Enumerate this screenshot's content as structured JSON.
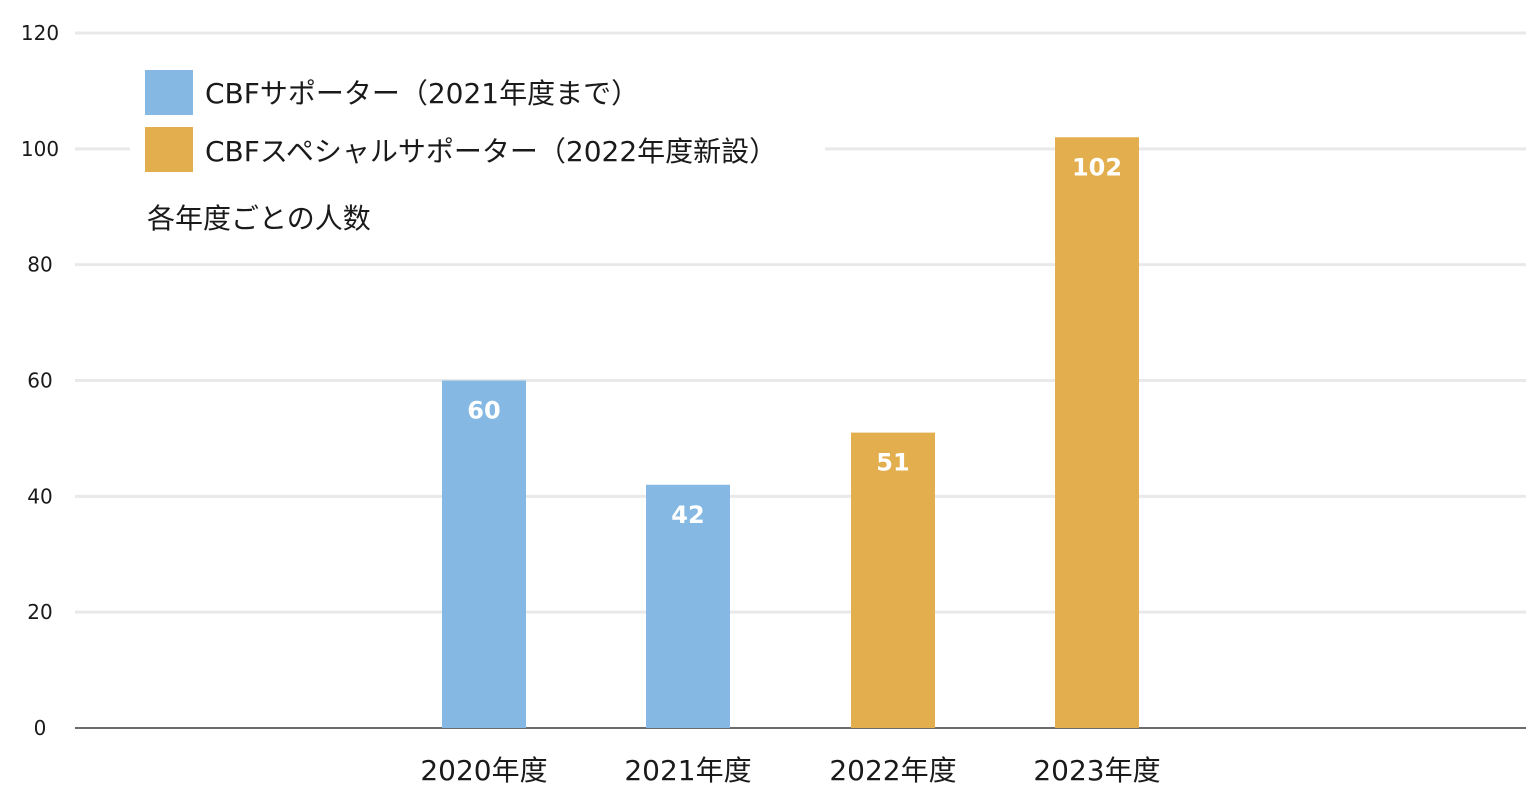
{
  "chart_data": {
    "type": "bar",
    "categories": [
      "2020年度",
      "2021年度",
      "2022年度",
      "2023年度"
    ],
    "series": [
      {
        "name": "CBFサポーター（2021年度まで）",
        "color": "#85b9e3",
        "values": [
          60,
          42,
          null,
          null
        ]
      },
      {
        "name": "CBFスペシャルサポーター（2022年度新設）",
        "color": "#e3ae4d",
        "values": [
          null,
          null,
          51,
          102
        ]
      }
    ],
    "bar_values": [
      60,
      42,
      51,
      102
    ],
    "bar_labels": [
      "60",
      "42",
      "51",
      "102"
    ],
    "bar_series": [
      0,
      0,
      1,
      1
    ],
    "annotation": "各年度ごとの人数",
    "yticks": [
      "0",
      "20",
      "40",
      "60",
      "80",
      "100",
      "120"
    ],
    "ylim": [
      0,
      120
    ],
    "grid": true,
    "legend_position": "top-left"
  }
}
